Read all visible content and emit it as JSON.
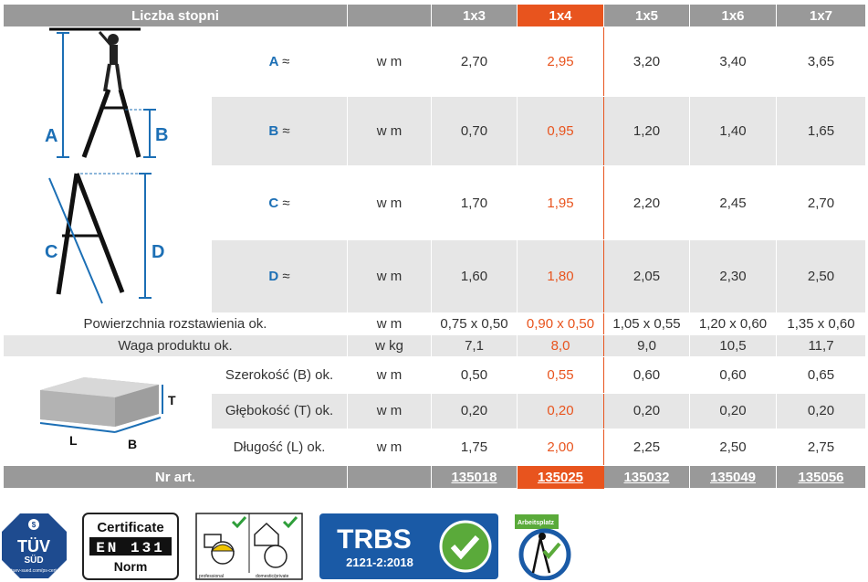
{
  "header": {
    "title": "Liczba stopni",
    "columns": [
      "1x3",
      "1x4",
      "1x5",
      "1x6",
      "1x7"
    ],
    "highlight_index": 1
  },
  "rows_top": [
    {
      "label": "A",
      "sym": "≈",
      "unit": "w m",
      "values": [
        "2,70",
        "2,95",
        "3,20",
        "3,40",
        "3,65"
      ]
    },
    {
      "label": "B",
      "sym": "≈",
      "unit": "w m",
      "values": [
        "0,70",
        "0,95",
        "1,20",
        "1,40",
        "1,65"
      ]
    },
    {
      "label": "C",
      "sym": "≈",
      "unit": "w m",
      "values": [
        "1,70",
        "1,95",
        "2,20",
        "2,45",
        "2,70"
      ]
    },
    {
      "label": "D",
      "sym": "≈",
      "unit": "w m",
      "values": [
        "1,60",
        "1,80",
        "2,05",
        "2,30",
        "2,50"
      ]
    }
  ],
  "rows_mid": [
    {
      "label": "Powierzchnia rozstawienia ok.",
      "unit": "w m",
      "values": [
        "0,75 x 0,50",
        "0,90 x 0,50",
        "1,05 x 0,55",
        "1,20 x 0,60",
        "1,35 x 0,60"
      ]
    },
    {
      "label": "Waga produktu ok.",
      "unit": "w kg",
      "values": [
        "7,1",
        "8,0",
        "9,0",
        "10,5",
        "11,7"
      ]
    }
  ],
  "rows_pack": [
    {
      "label": "Szerokość (B) ok.",
      "unit": "w m",
      "values": [
        "0,50",
        "0,55",
        "0,60",
        "0,60",
        "0,65"
      ]
    },
    {
      "label": "Głębokość (T) ok.",
      "unit": "w m",
      "values": [
        "0,20",
        "0,20",
        "0,20",
        "0,20",
        "0,20"
      ]
    },
    {
      "label": "Długość (L) ok.",
      "unit": "w m",
      "values": [
        "1,75",
        "2,00",
        "2,25",
        "2,50",
        "2,75"
      ]
    }
  ],
  "footer": {
    "label": "Nr art.",
    "values": [
      "135018",
      "135025",
      "135032",
      "135049",
      "135056"
    ]
  },
  "diagram": {
    "ladder_letters": [
      "A",
      "B",
      "C",
      "D"
    ],
    "box_letters": [
      "T",
      "L",
      "B"
    ]
  },
  "badges": {
    "tuv": {
      "line1": "TÜV",
      "line2": "SÜD",
      "sub": "tuev-sued.com/ps-cert"
    },
    "cert": {
      "line1": "Certificate",
      "line2": "EN 131",
      "line3": "Norm"
    },
    "use": {
      "left": "professional",
      "right": "domestic/private"
    },
    "trbs": {
      "line1": "TRBS",
      "line2": "2121-2:2018"
    },
    "arbeitsplatz": {
      "label": "Arbeitsplatz"
    }
  },
  "colors": {
    "accent": "#e8541e",
    "header": "#999999",
    "label_blue": "#1c6fb5",
    "alt_row": "#e6e6e6"
  }
}
